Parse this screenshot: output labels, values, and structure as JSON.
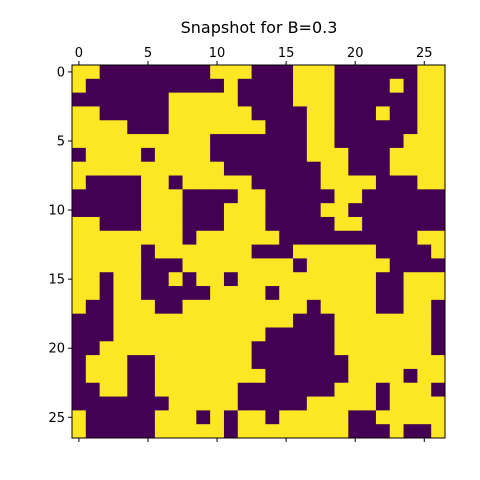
{
  "chart_data": {
    "type": "heatmap",
    "title": "Snapshot for B=0.3",
    "xlabel": "",
    "ylabel": "",
    "x_ticks": [
      "0",
      "5",
      "10",
      "15",
      "20",
      "25"
    ],
    "y_ticks": [
      "0",
      "5",
      "10",
      "15",
      "20",
      "25"
    ],
    "x_tick_values": [
      0,
      5,
      10,
      15,
      20,
      25
    ],
    "y_tick_values": [
      0,
      5,
      10,
      15,
      20,
      25
    ],
    "xlim": [
      -0.5,
      26.5
    ],
    "ylim": [
      26.5,
      -0.5
    ],
    "x_axis_position": "top-and-bottom",
    "grid": false,
    "colormap": "viridis",
    "color_low": "#440154",
    "color_high": "#fde725",
    "values": [
      [
        1,
        1,
        0,
        0,
        0,
        0,
        0,
        0,
        0,
        0,
        1,
        1,
        1,
        0,
        0,
        0,
        1,
        1,
        1,
        0,
        0,
        0,
        0,
        0,
        0,
        1,
        1
      ],
      [
        1,
        0,
        0,
        0,
        0,
        0,
        0,
        0,
        0,
        0,
        0,
        1,
        0,
        0,
        0,
        0,
        1,
        1,
        1,
        0,
        0,
        0,
        0,
        1,
        0,
        1,
        1
      ],
      [
        0,
        0,
        0,
        0,
        0,
        0,
        0,
        1,
        1,
        1,
        1,
        1,
        0,
        0,
        0,
        0,
        1,
        1,
        1,
        0,
        0,
        0,
        0,
        0,
        0,
        1,
        1
      ],
      [
        1,
        1,
        0,
        0,
        0,
        0,
        0,
        1,
        1,
        1,
        1,
        1,
        1,
        0,
        0,
        0,
        0,
        1,
        1,
        0,
        0,
        0,
        1,
        0,
        0,
        1,
        1
      ],
      [
        1,
        1,
        1,
        1,
        0,
        0,
        0,
        1,
        1,
        1,
        1,
        1,
        1,
        1,
        0,
        0,
        0,
        1,
        1,
        0,
        0,
        0,
        0,
        0,
        0,
        1,
        1
      ],
      [
        1,
        1,
        1,
        1,
        1,
        1,
        1,
        1,
        1,
        1,
        0,
        0,
        0,
        0,
        0,
        0,
        0,
        1,
        1,
        0,
        0,
        0,
        0,
        0,
        1,
        1,
        1
      ],
      [
        0,
        1,
        1,
        1,
        1,
        0,
        1,
        1,
        1,
        1,
        0,
        0,
        0,
        0,
        0,
        0,
        0,
        1,
        1,
        1,
        0,
        0,
        0,
        1,
        1,
        1,
        1
      ],
      [
        1,
        1,
        1,
        1,
        1,
        1,
        1,
        1,
        1,
        1,
        1,
        0,
        0,
        0,
        0,
        0,
        0,
        0,
        1,
        1,
        0,
        0,
        0,
        1,
        1,
        1,
        1
      ],
      [
        1,
        0,
        0,
        0,
        0,
        1,
        1,
        0,
        1,
        1,
        1,
        1,
        1,
        0,
        0,
        0,
        0,
        0,
        1,
        1,
        1,
        1,
        0,
        0,
        0,
        1,
        1
      ],
      [
        0,
        0,
        0,
        0,
        0,
        1,
        1,
        1,
        0,
        0,
        0,
        0,
        1,
        1,
        0,
        0,
        0,
        0,
        0,
        1,
        1,
        0,
        0,
        0,
        0,
        0,
        0
      ],
      [
        0,
        0,
        0,
        0,
        0,
        1,
        1,
        1,
        0,
        0,
        0,
        1,
        1,
        1,
        0,
        0,
        0,
        0,
        1,
        1,
        0,
        0,
        0,
        0,
        0,
        0,
        0
      ],
      [
        1,
        1,
        0,
        0,
        0,
        1,
        1,
        1,
        0,
        0,
        0,
        1,
        1,
        1,
        0,
        0,
        0,
        0,
        0,
        1,
        1,
        0,
        0,
        0,
        0,
        0,
        0
      ],
      [
        1,
        1,
        1,
        1,
        1,
        1,
        1,
        1,
        0,
        1,
        1,
        1,
        1,
        1,
        1,
        0,
        0,
        0,
        0,
        0,
        0,
        0,
        0,
        0,
        0,
        1,
        1
      ],
      [
        1,
        1,
        1,
        1,
        1,
        0,
        1,
        1,
        1,
        1,
        1,
        1,
        1,
        0,
        0,
        0,
        1,
        1,
        1,
        1,
        1,
        1,
        0,
        0,
        0,
        0,
        1
      ],
      [
        1,
        1,
        1,
        1,
        1,
        0,
        0,
        0,
        1,
        1,
        1,
        1,
        1,
        1,
        1,
        1,
        0,
        1,
        1,
        1,
        1,
        1,
        1,
        0,
        0,
        0,
        0
      ],
      [
        1,
        1,
        0,
        1,
        1,
        0,
        0,
        1,
        0,
        1,
        1,
        0,
        1,
        1,
        1,
        1,
        1,
        1,
        1,
        1,
        1,
        1,
        0,
        0,
        1,
        1,
        1
      ],
      [
        1,
        1,
        0,
        1,
        1,
        0,
        0,
        0,
        0,
        0,
        1,
        1,
        1,
        1,
        0,
        1,
        1,
        1,
        1,
        1,
        1,
        1,
        0,
        0,
        1,
        1,
        1
      ],
      [
        1,
        0,
        0,
        1,
        1,
        1,
        0,
        0,
        1,
        1,
        1,
        1,
        1,
        1,
        1,
        1,
        1,
        0,
        1,
        1,
        1,
        1,
        0,
        0,
        1,
        1,
        0
      ],
      [
        0,
        0,
        0,
        1,
        1,
        1,
        1,
        1,
        1,
        1,
        1,
        1,
        1,
        1,
        1,
        1,
        0,
        0,
        0,
        1,
        1,
        1,
        1,
        1,
        1,
        1,
        0
      ],
      [
        0,
        0,
        0,
        1,
        1,
        1,
        1,
        1,
        1,
        1,
        1,
        1,
        1,
        1,
        0,
        0,
        0,
        0,
        0,
        1,
        1,
        1,
        1,
        1,
        1,
        1,
        0
      ],
      [
        0,
        0,
        1,
        1,
        1,
        1,
        1,
        1,
        1,
        1,
        1,
        1,
        1,
        0,
        0,
        0,
        0,
        0,
        0,
        1,
        1,
        1,
        1,
        1,
        1,
        1,
        0
      ],
      [
        0,
        1,
        1,
        1,
        0,
        0,
        1,
        1,
        1,
        1,
        1,
        1,
        1,
        0,
        0,
        0,
        0,
        0,
        0,
        0,
        1,
        1,
        1,
        1,
        1,
        1,
        1
      ],
      [
        0,
        1,
        1,
        1,
        0,
        0,
        1,
        1,
        1,
        1,
        1,
        1,
        1,
        1,
        0,
        0,
        0,
        0,
        0,
        0,
        1,
        1,
        1,
        1,
        0,
        1,
        1
      ],
      [
        0,
        0,
        1,
        1,
        0,
        0,
        1,
        1,
        1,
        1,
        1,
        1,
        0,
        0,
        0,
        0,
        0,
        0,
        0,
        1,
        1,
        1,
        0,
        1,
        1,
        1,
        0
      ],
      [
        0,
        0,
        0,
        0,
        0,
        0,
        0,
        1,
        1,
        1,
        1,
        1,
        0,
        0,
        0,
        0,
        0,
        1,
        1,
        1,
        1,
        1,
        0,
        1,
        1,
        1,
        1
      ],
      [
        1,
        0,
        0,
        0,
        0,
        0,
        1,
        1,
        1,
        0,
        1,
        0,
        1,
        1,
        0,
        1,
        1,
        1,
        1,
        1,
        0,
        0,
        1,
        1,
        1,
        1,
        1
      ],
      [
        1,
        0,
        0,
        0,
        0,
        0,
        1,
        1,
        1,
        1,
        1,
        0,
        1,
        1,
        1,
        1,
        1,
        1,
        1,
        1,
        0,
        0,
        0,
        1,
        0,
        0,
        1
      ]
    ]
  }
}
